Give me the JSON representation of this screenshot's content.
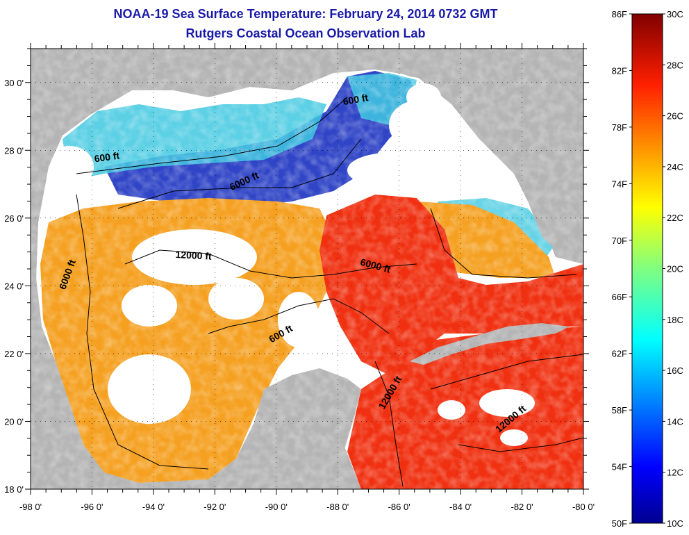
{
  "header": {
    "title": "NOAA-19 Sea Surface Temperature:  February 24, 2014 0732 GMT",
    "subtitle": "Rutgers Coastal Ocean Observation Lab"
  },
  "map": {
    "lon_range": [
      -98,
      -80
    ],
    "lat_range": [
      18,
      31
    ],
    "x_ticks": [
      "-98 0'",
      "-96 0'",
      "-94 0'",
      "-92 0'",
      "-90 0'",
      "-88 0'",
      "-86 0'",
      "-84 0'",
      "-82 0'",
      "-80 0'"
    ],
    "y_ticks": [
      "18 0'",
      "20 0'",
      "22 0'",
      "24 0'",
      "26 0'",
      "28 0'",
      "30 0'"
    ],
    "colors": {
      "land": "#b4b4b4",
      "cloud": "#ffffff",
      "warm": "#f03010",
      "orange": "#f5a020",
      "cool": "#40c8e0",
      "cold": "#1830c0"
    },
    "contours": [
      {
        "label": "600 ft",
        "lon": -95.5,
        "lat": 27.7,
        "angle": -8
      },
      {
        "label": "6000 ft",
        "lon": -91.0,
        "lat": 27.0,
        "angle": -25
      },
      {
        "label": "600 ft",
        "lon": -87.4,
        "lat": 29.4,
        "angle": -10
      },
      {
        "label": "12000 ft",
        "lon": -92.7,
        "lat": 24.8,
        "angle": 3
      },
      {
        "label": "6000 ft",
        "lon": -96.7,
        "lat": 24.3,
        "angle": -70
      },
      {
        "label": "6000 ft",
        "lon": -86.8,
        "lat": 24.5,
        "angle": 15
      },
      {
        "label": "600 ft",
        "lon": -89.8,
        "lat": 22.5,
        "angle": -30
      },
      {
        "label": "12000 ft",
        "lon": -86.2,
        "lat": 20.8,
        "angle": -60
      },
      {
        "label": "12000 ft",
        "lon": -82.3,
        "lat": 20.0,
        "angle": -40
      }
    ]
  },
  "colorbar": {
    "fahrenheit": [
      "86F",
      "82F",
      "78F",
      "74F",
      "70F",
      "66F",
      "62F",
      "58F",
      "54F",
      "50F"
    ],
    "celsius": [
      "30C",
      "28C",
      "26C",
      "24C",
      "22C",
      "20C",
      "18C",
      "16C",
      "14C",
      "12C",
      "10C"
    ],
    "range_f": [
      50,
      86
    ],
    "range_c": [
      10,
      30
    ]
  }
}
